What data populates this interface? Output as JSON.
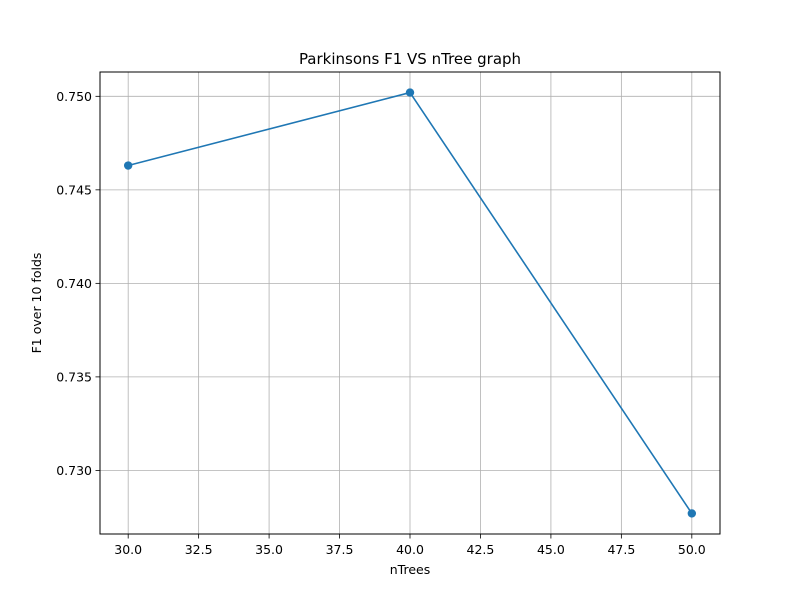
{
  "chart_data": {
    "type": "line",
    "title": "Parkinsons F1 VS nTree graph",
    "xlabel": "nTrees",
    "ylabel": "F1 over 10 folds",
    "x": [
      30,
      40,
      50
    ],
    "series": [
      {
        "values": [
          0.7463,
          0.7502,
          0.7277
        ],
        "color": "#1f77b4"
      }
    ],
    "xlim": [
      29,
      51
    ],
    "ylim": [
      0.7266,
      0.7513
    ],
    "xticks": [
      30.0,
      32.5,
      35.0,
      37.5,
      40.0,
      42.5,
      45.0,
      47.5,
      50.0
    ],
    "xtick_labels": [
      "30.0",
      "32.5",
      "35.0",
      "37.5",
      "40.0",
      "42.5",
      "45.0",
      "47.5",
      "50.0"
    ],
    "yticks": [
      0.73,
      0.735,
      0.74,
      0.745,
      0.75
    ],
    "ytick_labels": [
      "0.730",
      "0.735",
      "0.740",
      "0.745",
      "0.750"
    ],
    "grid": true,
    "marker": "circle"
  }
}
